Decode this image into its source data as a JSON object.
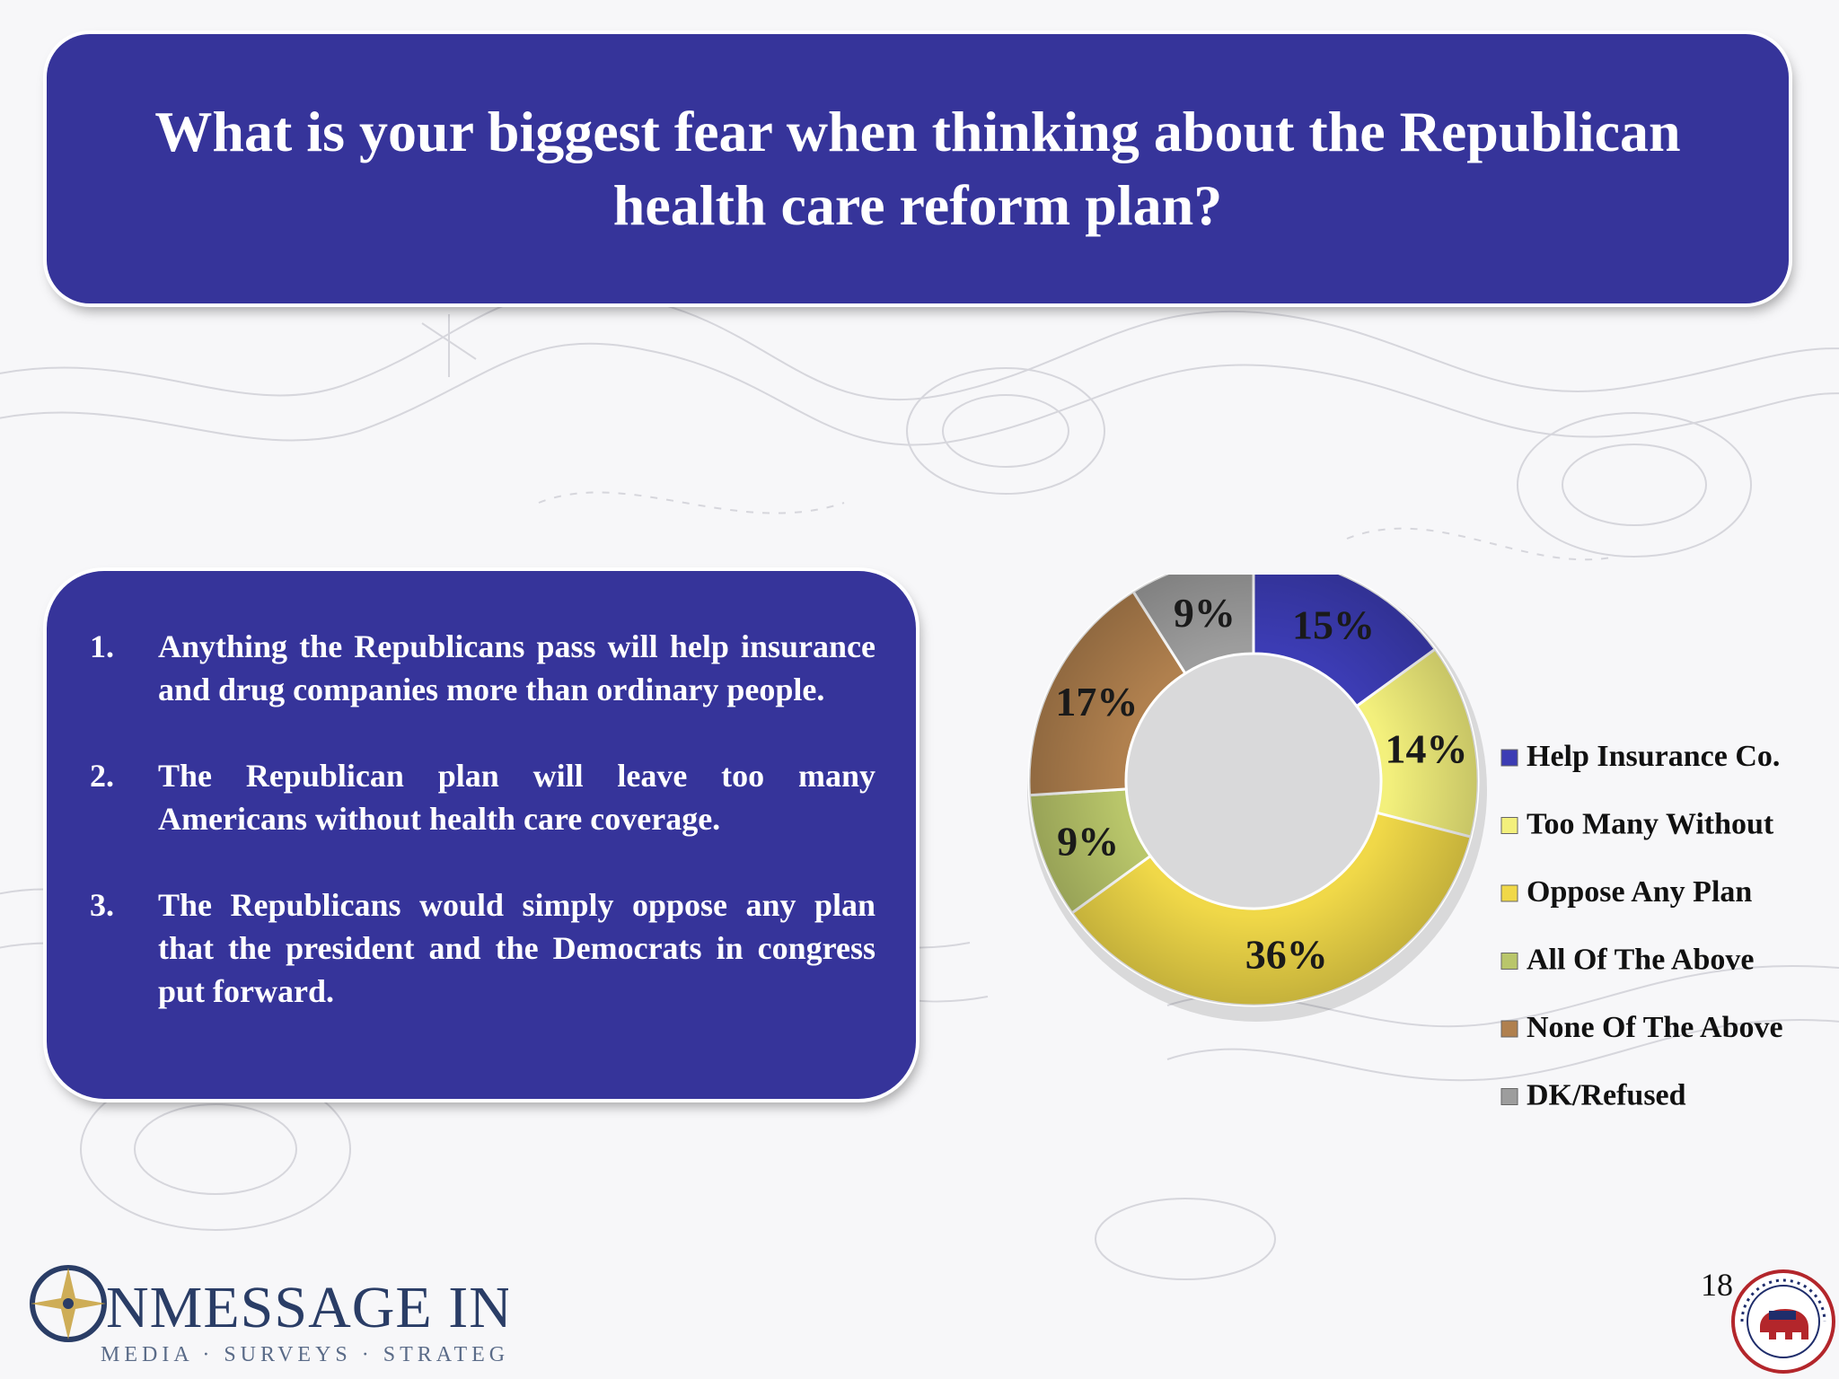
{
  "title": "What is your biggest fear when thinking about the Republican health care reform plan?",
  "list": [
    {
      "num": "1.",
      "text": "Anything the Republicans pass will help insurance and drug companies more than ordinary people."
    },
    {
      "num": "2.",
      "text": "The Republican plan will leave too many Americans without health care coverage."
    },
    {
      "num": "3.",
      "text": "The Republicans would simply oppose any plan that the president and the Democrats in congress put forward."
    }
  ],
  "chart_data": {
    "type": "pie",
    "variant": "donut",
    "legend_position": "right",
    "series": [
      {
        "name": "Help Insurance Co.",
        "value": 15,
        "label": "15%",
        "color": "#3c3cb4"
      },
      {
        "name": "Too Many Without",
        "value": 14,
        "label": "14%",
        "color": "#f3f07c"
      },
      {
        "name": "Oppose Any Plan",
        "value": 36,
        "label": "36%",
        "color": "#f0d848"
      },
      {
        "name": "All Of The Above",
        "value": 9,
        "label": "9%",
        "color": "#b9c66a"
      },
      {
        "name": "None Of The Above",
        "value": 17,
        "label": "17%",
        "color": "#b0804e"
      },
      {
        "name": "DK/Refused",
        "value": 9,
        "label": "9%",
        "color": "#9d9d9d"
      }
    ]
  },
  "page_number": "18",
  "logo": {
    "name": "OnMessage Inc.",
    "tagline": "Media • Surveys • Strategy"
  },
  "seal": {
    "text": "REPUBLICAN NATIONAL COMMITTEE"
  }
}
